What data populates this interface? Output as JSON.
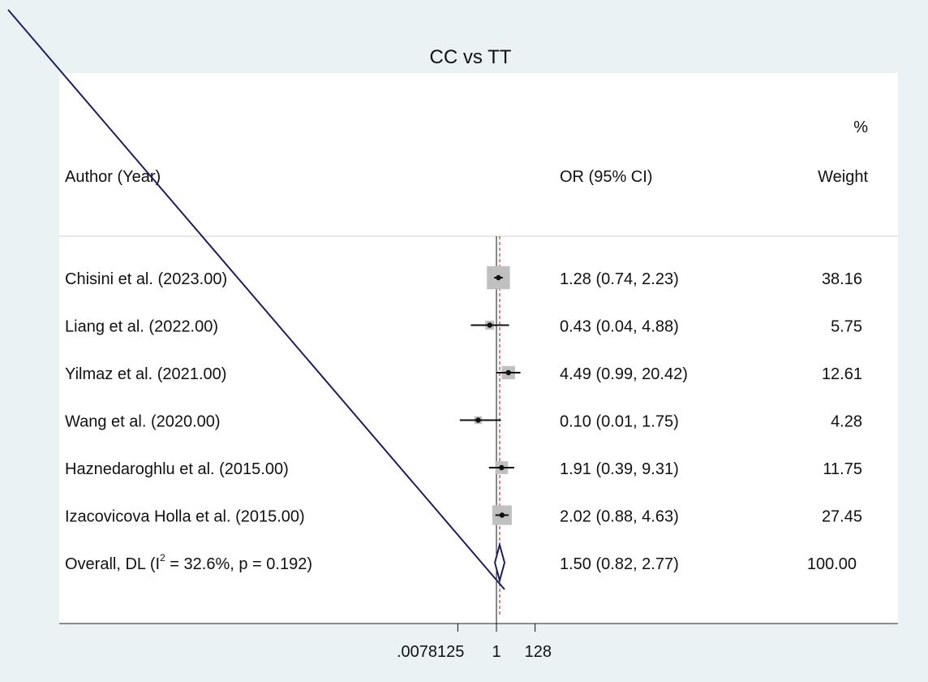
{
  "chart_data": {
    "type": "forest",
    "title": "CC vs TT",
    "xscale": "log2",
    "xlim": [
      0.0078125,
      128
    ],
    "xticks": [
      0.0078125,
      1,
      128
    ],
    "xtick_labels": [
      ".0078125",
      "1",
      "128"
    ],
    "reference_line": 1,
    "overall_line": 1.5,
    "header": {
      "study": "Author (Year)",
      "effect": "OR  (95% CI)",
      "weight_pct": "%",
      "weight": "Weight"
    },
    "studies": [
      {
        "label": "Chisini et al. (2023.00)",
        "or": 1.28,
        "lo": 0.74,
        "hi": 2.23,
        "ci_text": "1.28 (0.74, 2.23)",
        "weight": 38.16,
        "weight_text": "38.16"
      },
      {
        "label": "Liang et al. (2022.00)",
        "or": 0.43,
        "lo": 0.04,
        "hi": 4.88,
        "ci_text": "0.43 (0.04, 4.88)",
        "weight": 5.75,
        "weight_text": "5.75"
      },
      {
        "label": "Yilmaz et al. (2021.00)",
        "or": 4.49,
        "lo": 0.99,
        "hi": 20.42,
        "ci_text": "4.49 (0.99, 20.42)",
        "weight": 12.61,
        "weight_text": "12.61"
      },
      {
        "label": "Wang et al. (2020.00)",
        "or": 0.1,
        "lo": 0.01,
        "hi": 1.75,
        "ci_text": "0.10 (0.01, 1.75)",
        "weight": 4.28,
        "weight_text": "4.28"
      },
      {
        "label": "Haznedaroghlu et al. (2015.00)",
        "or": 1.91,
        "lo": 0.39,
        "hi": 9.31,
        "ci_text": "1.91 (0.39, 9.31)",
        "weight": 11.75,
        "weight_text": "11.75"
      },
      {
        "label": "Izacovicova Holla et al. (2015.00)",
        "or": 2.02,
        "lo": 0.88,
        "hi": 4.63,
        "ci_text": "2.02 (0.88, 4.63)",
        "weight": 27.45,
        "weight_text": "27.45"
      }
    ],
    "overall": {
      "label_prefix": "Overall, DL (I",
      "label_sup": "2",
      "label_suffix": " = 32.6%, p = 0.192)",
      "or": 1.5,
      "lo": 0.82,
      "hi": 2.77,
      "ci_text": "1.50 (0.82, 2.77)",
      "weight_text": "100.00"
    },
    "colors": {
      "background": "#eaf2f3",
      "panel": "#ffffff",
      "box": "#c0c0c0",
      "diamond": "#1f1f5e",
      "overlay_line": "#1f1f5e",
      "overall_line": "#b03a3a"
    }
  }
}
